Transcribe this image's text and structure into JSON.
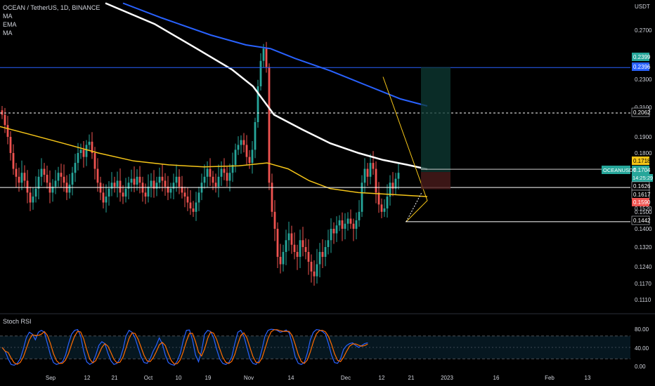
{
  "header": {
    "title": "OCEAN / TetherUS, 1D, BINANCE",
    "indicators": [
      "MA",
      "EMA",
      "MA"
    ],
    "currency": "USDT"
  },
  "colors": {
    "background": "#000000",
    "bull": "#26a69a",
    "bear": "#ef5350",
    "ma_white": "#ffffff",
    "ma_blue": "#2962ff",
    "ma_yellow": "#f5c518",
    "level_line": "#2962ff",
    "rsi_k": "#2962ff",
    "rsi_d": "#ff6d00",
    "grid_text": "#d1d4dc"
  },
  "chart_data": {
    "type": "candlestick",
    "symbol": "OCEANUSDT",
    "interval": "1D",
    "ylim": [
      0.108,
      0.29
    ],
    "y_ticks": [
      0.27,
      0.23,
      0.21,
      0.19,
      0.18,
      0.152,
      0.15,
      0.14,
      0.132,
      0.124,
      0.117,
      0.111
    ],
    "x_labels": [
      "Sep",
      "12",
      "21",
      "Oct",
      "10",
      "19",
      "Nov",
      "14",
      "Dec",
      "12",
      "21",
      "2023",
      "16",
      "Feb",
      "13"
    ],
    "price_labels": [
      {
        "value": "0.2399",
        "color": "#26a69a"
      },
      {
        "value": "0.2396",
        "color": "#2962ff"
      },
      {
        "value": "0.2062",
        "color": "#000000"
      },
      {
        "value": "0.1718",
        "color": "#f5c518"
      },
      {
        "value": "0.1704",
        "color": "#26a69a",
        "name": "OCEANUSDT",
        "countdown": "14:25:29"
      },
      {
        "value": "0.1626",
        "color": "#000000"
      },
      {
        "value": "0.1617",
        "color": "#000000"
      },
      {
        "value": "0.1590",
        "color": "#ef5350"
      },
      {
        "value": "0.1442",
        "color": "#000000"
      }
    ],
    "horizontal_levels": [
      {
        "value": 0.2396,
        "style": "solid",
        "color": "#2962ff"
      },
      {
        "value": 0.2062,
        "style": "dashed",
        "color": "#ffffff"
      },
      {
        "value": 0.1626,
        "style": "solid",
        "color": "#ffffff"
      }
    ],
    "position": {
      "entry": 0.1704,
      "target": 0.2399,
      "stop": 0.1617
    },
    "rsi": {
      "title": "Stoch RSI",
      "levels": [
        80,
        20
      ],
      "y_ticks": [
        "80.00",
        "40.00",
        "0.00"
      ]
    }
  }
}
